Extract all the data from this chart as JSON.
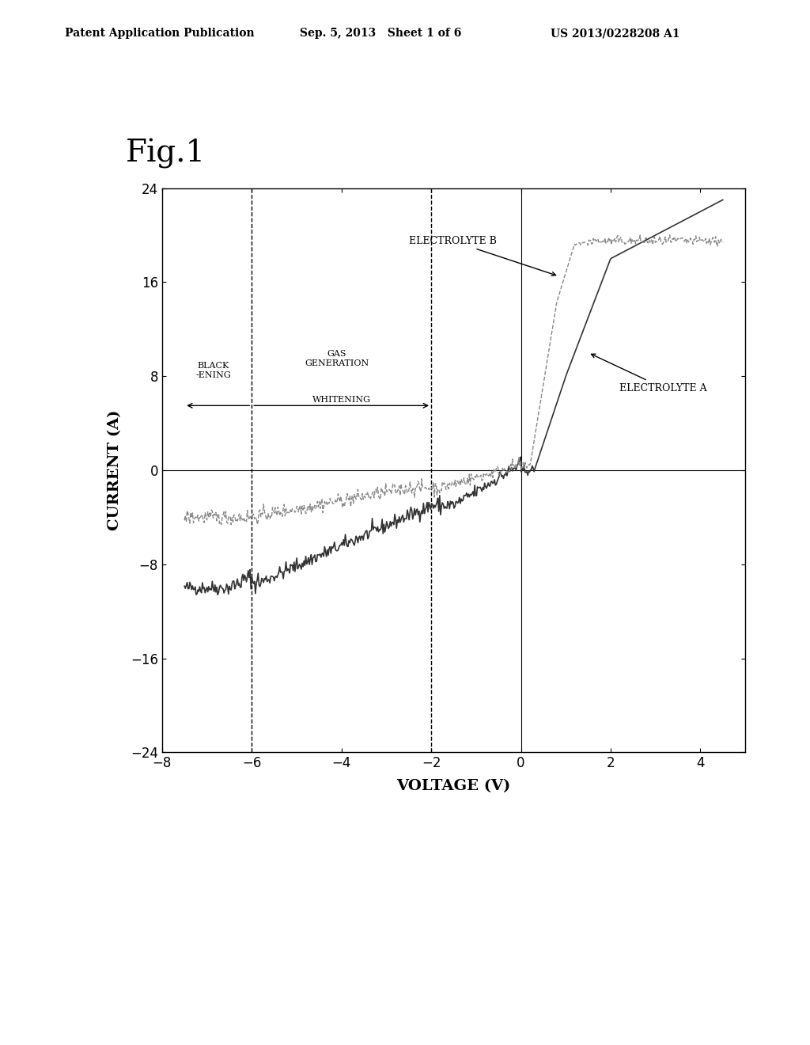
{
  "fig_label": "Fig.1",
  "header_left": "Patent Application Publication",
  "header_mid": "Sep. 5, 2013   Sheet 1 of 6",
  "header_right": "US 2013/0228208 A1",
  "xlabel": "VOLTAGE (V)",
  "ylabel": "CURRENT (A)",
  "xlim": [
    -8,
    5
  ],
  "ylim": [
    -24,
    24
  ],
  "xticks": [
    -8,
    -6,
    -4,
    -2,
    0,
    2,
    4
  ],
  "yticks": [
    -24,
    -16,
    -8,
    0,
    8,
    16,
    24
  ],
  "dashed_vlines": [
    -6,
    -2,
    0
  ],
  "label_blackening": "BLACK\n-ENING",
  "label_gas": "GAS\nGENERATION",
  "label_whitening": "WHITENING",
  "label_elec_b": "ELECTROLYTE B",
  "label_elec_a": "ELECTROLYTE A",
  "background": "#ffffff",
  "line_color_a": "#333333",
  "line_color_b": "#888888",
  "annotation_arrow_color": "#000000"
}
